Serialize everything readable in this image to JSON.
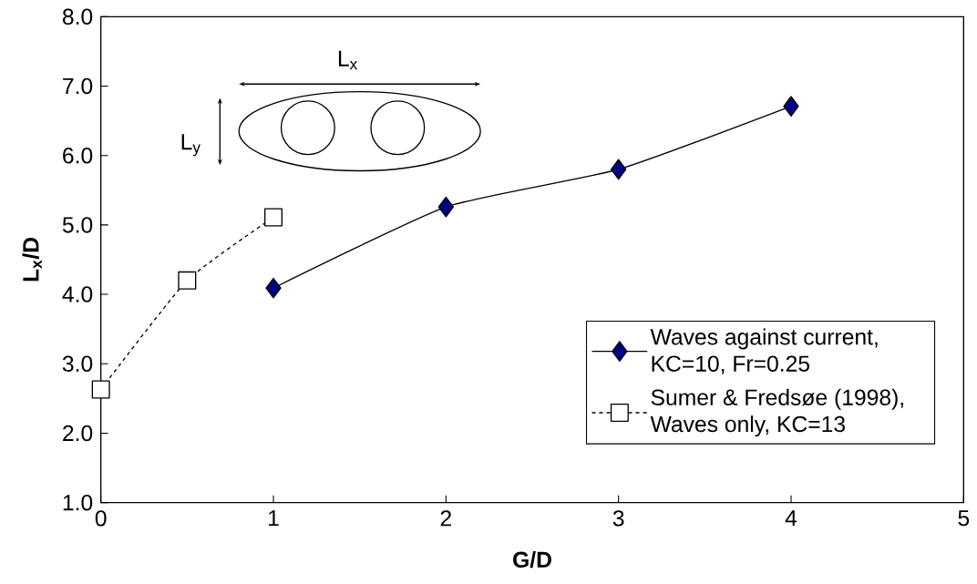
{
  "chart_data": {
    "type": "line",
    "xlabel": "G/D",
    "ylabel": "L$_{x}$/D",
    "xlim": [
      0,
      5
    ],
    "ylim": [
      1,
      8
    ],
    "xticks": [
      0,
      1,
      2,
      3,
      4,
      5
    ],
    "yticks": [
      {
        "value": 1,
        "label": "1.0"
      },
      {
        "value": 2,
        "label": "2.0"
      },
      {
        "value": 3,
        "label": "3.0"
      },
      {
        "value": 4,
        "label": "4.0"
      },
      {
        "value": 5,
        "label": "5.0"
      },
      {
        "value": 6,
        "label": "6.0"
      },
      {
        "value": 7,
        "label": "7.0"
      },
      {
        "value": 8,
        "label": "8.0"
      }
    ],
    "grid": false,
    "legend": "bottom right",
    "annotations": [
      "L$_{x}$",
      "L$_{y}$"
    ],
    "series": [
      {
        "name": "Waves against current, KC=10, Fr=0.25",
        "color": "#000080",
        "marker": "diamond",
        "line_style": "solid",
        "x": [
          1,
          2,
          3,
          4
        ],
        "values": [
          4.09,
          5.26,
          5.8,
          6.71
        ]
      },
      {
        "name": "Sumer & Fredsøe (1998), Waves only, KC=13",
        "color": "#000000",
        "marker": "square",
        "line_style": "dashed",
        "x": [
          0,
          0.5,
          1
        ],
        "values": [
          2.63,
          4.2,
          5.11
        ]
      }
    ]
  }
}
